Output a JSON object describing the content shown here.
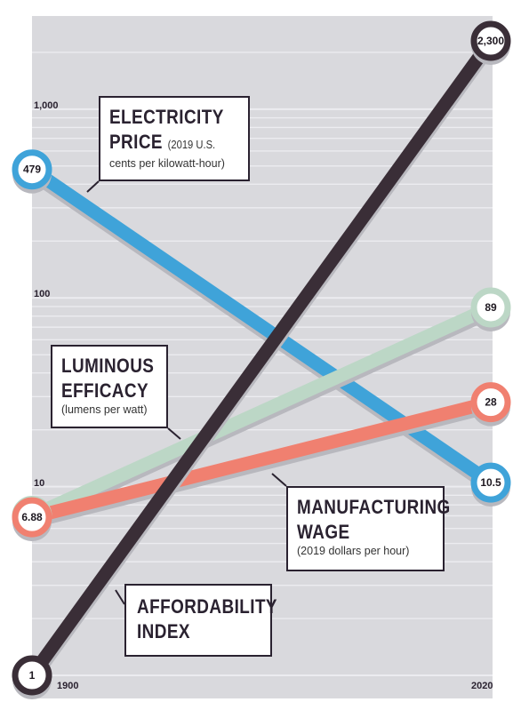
{
  "chart_data": {
    "type": "line",
    "y_scale": "log",
    "ylim": [
      1,
      2300
    ],
    "x_tick_labels": [
      "1900",
      "2020"
    ],
    "y_tick_labels": [
      "1,000",
      "100",
      "10"
    ],
    "series": [
      {
        "name_line1": "ELECTRICITY",
        "name_line2": "PRICE",
        "unit": "(2019 U.S. cents per kilowatt-hour)",
        "unit_a": "(2019 U.S.",
        "unit_b": "cents per kilowatt-hour)",
        "start_label": "479",
        "end_label": "10.5",
        "start": 479,
        "end": 10.5,
        "color": "#3fa3d9"
      },
      {
        "name_line1": "LUMINOUS",
        "name_line2": "EFFICACY",
        "unit": "(lumens per watt)",
        "start_label": "7",
        "end_label": "89",
        "start": 7,
        "end": 89,
        "color": "#bcd7c6"
      },
      {
        "name_line1": "MANUFACTURING",
        "name_line2": "WAGE",
        "unit": "(2019 dollars per hour)",
        "start_label": "6.88",
        "end_label": "28",
        "start": 6.88,
        "end": 28,
        "color": "#f08070"
      },
      {
        "name_line1": "AFFORDABILITY",
        "name_line2": "INDEX",
        "unit": "",
        "start_label": "1",
        "end_label": "2,300",
        "start": 1,
        "end": 2300,
        "color": "#3a2e37"
      }
    ]
  },
  "colors": {
    "panel": "#d9d9dd",
    "gridline": "#ececf0",
    "ink": "#2a2230"
  }
}
